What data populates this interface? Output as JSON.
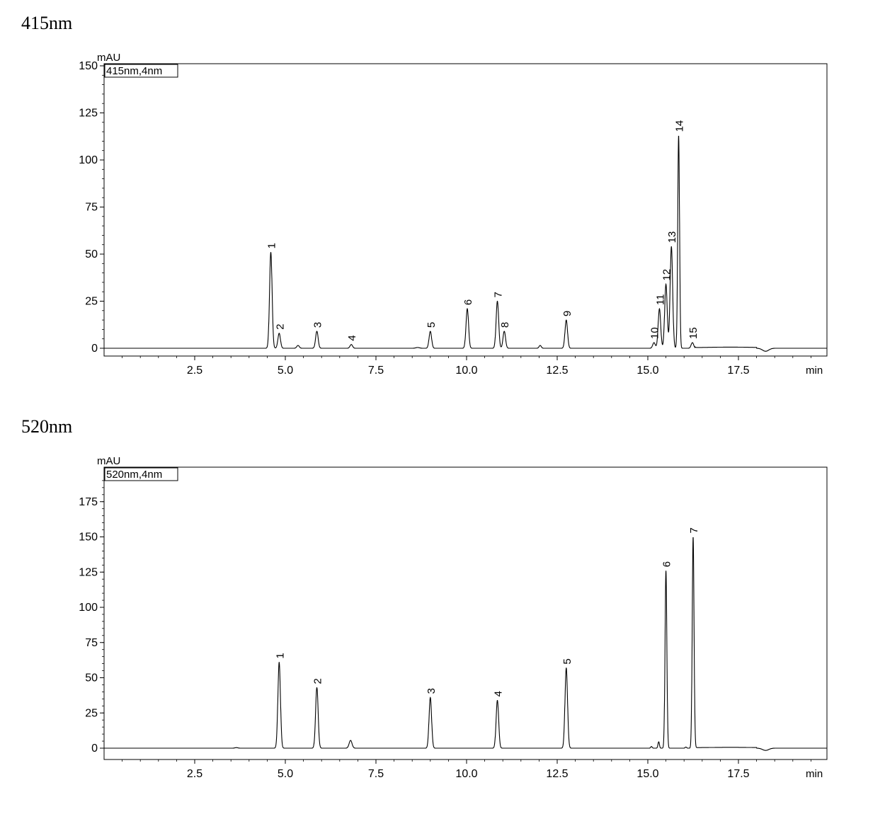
{
  "chart_data": [
    {
      "type": "line",
      "title": "415nm",
      "legend": "415nm,4nm",
      "ylabel": "mAU",
      "xlabel": "min",
      "xlim": [
        0,
        20
      ],
      "ylim": [
        -4,
        150
      ],
      "xticks": [
        "2.5",
        "5.0",
        "7.5",
        "10.0",
        "12.5",
        "15.0",
        "17.5"
      ],
      "yticks": [
        "0",
        "25",
        "50",
        "75",
        "100",
        "125",
        "150"
      ],
      "peaks": [
        {
          "label": "1",
          "x": 4.6,
          "y": 51
        },
        {
          "label": "2",
          "x": 4.83,
          "y": 8
        },
        {
          "label": "3",
          "x": 5.87,
          "y": 9
        },
        {
          "label": "4",
          "x": 6.82,
          "y": 2
        },
        {
          "label": "5",
          "x": 9.0,
          "y": 9
        },
        {
          "label": "6",
          "x": 10.02,
          "y": 21
        },
        {
          "label": "7",
          "x": 10.85,
          "y": 25
        },
        {
          "label": "8",
          "x": 11.04,
          "y": 9
        },
        {
          "label": "9",
          "x": 12.75,
          "y": 15
        },
        {
          "label": "10",
          "x": 15.17,
          "y": 3
        },
        {
          "label": "11",
          "x": 15.32,
          "y": 21
        },
        {
          "label": "12",
          "x": 15.5,
          "y": 34
        },
        {
          "label": "13",
          "x": 15.65,
          "y": 54
        },
        {
          "label": "14",
          "x": 15.85,
          "y": 113
        },
        {
          "label": "15",
          "x": 16.23,
          "y": 3
        }
      ]
    },
    {
      "type": "line",
      "title": "520nm",
      "legend": "520nm,4nm",
      "ylabel": "mAU",
      "xlabel": "min",
      "xlim": [
        0,
        20
      ],
      "ylim": [
        -7,
        190
      ],
      "xticks": [
        "2.5",
        "5.0",
        "7.5",
        "10.0",
        "12.5",
        "15.0",
        "17.5"
      ],
      "yticks": [
        "0",
        "25",
        "50",
        "75",
        "100",
        "125",
        "150",
        "175"
      ],
      "peaks": [
        {
          "label": "1",
          "x": 4.83,
          "y": 61
        },
        {
          "label": "2",
          "x": 5.87,
          "y": 43
        },
        {
          "label": "3",
          "x": 9.0,
          "y": 36
        },
        {
          "label": "4",
          "x": 10.85,
          "y": 34
        },
        {
          "label": "5",
          "x": 12.75,
          "y": 57
        },
        {
          "label": "6",
          "x": 15.5,
          "y": 126
        },
        {
          "label": "7",
          "x": 16.25,
          "y": 150
        }
      ]
    }
  ]
}
